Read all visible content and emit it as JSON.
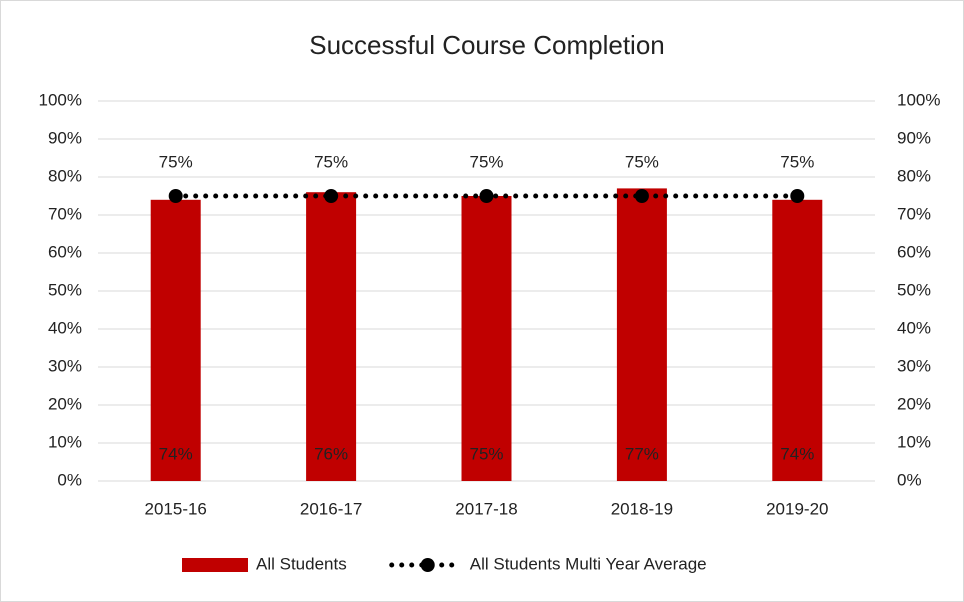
{
  "chart_data": {
    "type": "bar_line",
    "title": "Successful Course Completion",
    "categories": [
      "2015-16",
      "2016-17",
      "2017-18",
      "2018-19",
      "2019-20"
    ],
    "series": [
      {
        "name": "All Students",
        "type": "bar",
        "color": "#c00000",
        "values": [
          74,
          76,
          75,
          77,
          74
        ],
        "value_labels": [
          "74%",
          "76%",
          "75%",
          "77%",
          "74%"
        ]
      },
      {
        "name": "All Students Multi Year Average",
        "type": "line",
        "axis": "y2",
        "color": "#000000",
        "line_style": "dotted",
        "values": [
          75,
          75,
          75,
          75,
          75
        ],
        "value_labels": [
          "75%",
          "75%",
          "75%",
          "75%",
          "75%"
        ]
      }
    ],
    "ylim": [
      0,
      100
    ],
    "yticks": [
      {
        "value": 0,
        "label": "0%"
      },
      {
        "value": 10,
        "label": "10%"
      },
      {
        "value": 20,
        "label": "20%"
      },
      {
        "value": 30,
        "label": "30%"
      },
      {
        "value": 40,
        "label": "40%"
      },
      {
        "value": 50,
        "label": "50%"
      },
      {
        "value": 60,
        "label": "60%"
      },
      {
        "value": 70,
        "label": "70%"
      },
      {
        "value": 80,
        "label": "80%"
      },
      {
        "value": 90,
        "label": "90%"
      },
      {
        "value": 100,
        "label": "100%"
      }
    ],
    "y2lim": [
      0,
      100
    ],
    "y2ticks": [
      {
        "value": 0,
        "label": "0%"
      },
      {
        "value": 10,
        "label": "10%"
      },
      {
        "value": 20,
        "label": "20%"
      },
      {
        "value": 30,
        "label": "30%"
      },
      {
        "value": 40,
        "label": "40%"
      },
      {
        "value": 50,
        "label": "50%"
      },
      {
        "value": 60,
        "label": "60%"
      },
      {
        "value": 70,
        "label": "70%"
      },
      {
        "value": 80,
        "label": "80%"
      },
      {
        "value": 90,
        "label": "90%"
      },
      {
        "value": 100,
        "label": "100%"
      }
    ],
    "grid": true,
    "legend": "bottom"
  }
}
